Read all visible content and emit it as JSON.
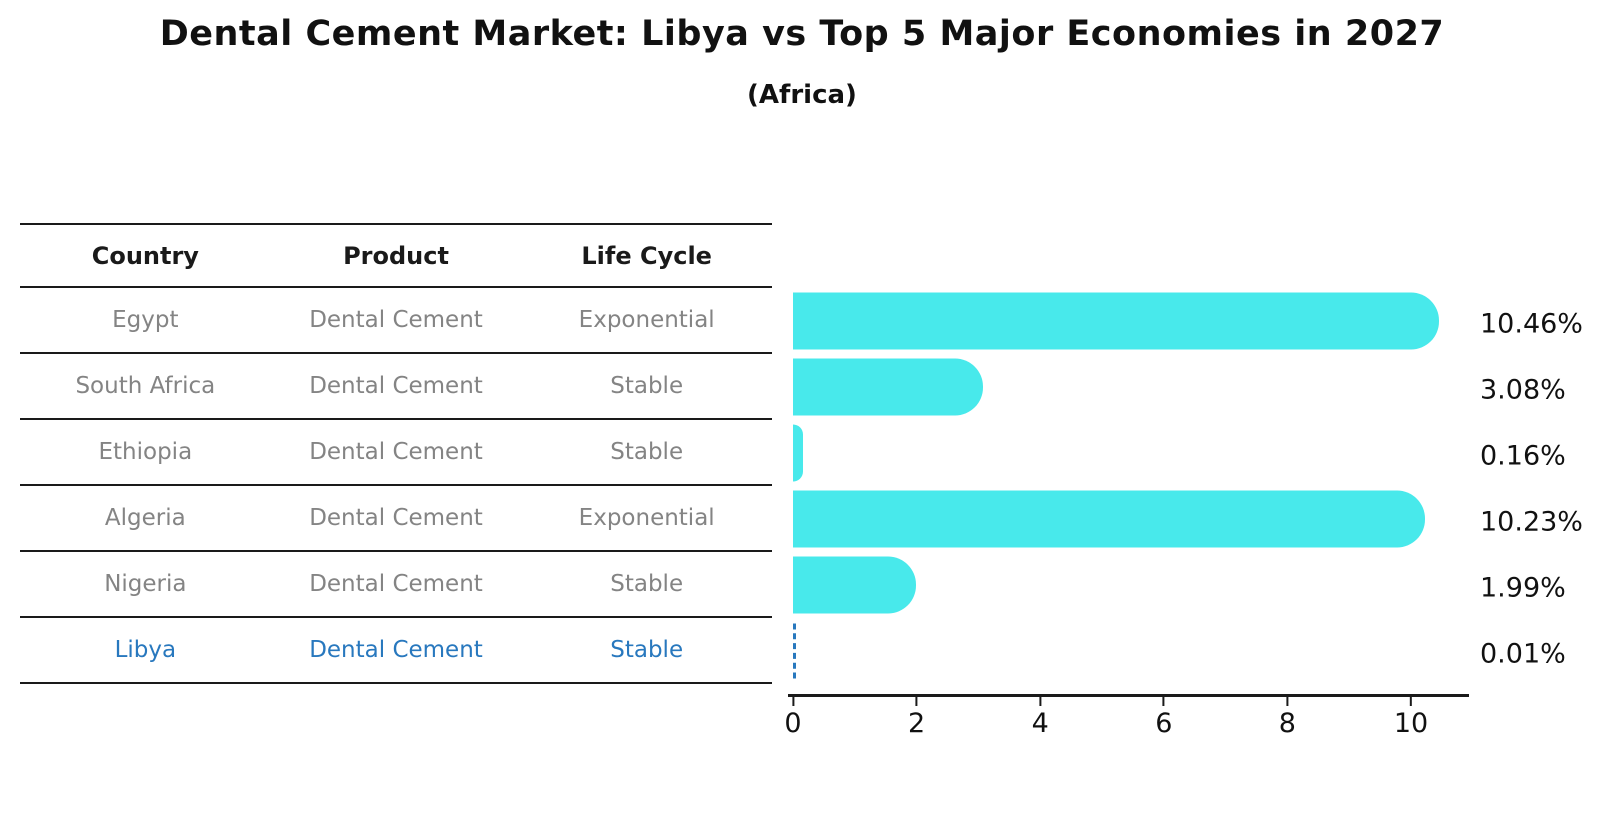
{
  "title": "Dental Cement Market: Libya vs Top 5 Major Economies in 2027",
  "subtitle": "(Africa)",
  "table": {
    "headers": [
      "Country",
      "Product",
      "Life Cycle"
    ],
    "rows": [
      {
        "country": "Egypt",
        "product": "Dental Cement",
        "life_cycle": "Exponential",
        "highlight": false
      },
      {
        "country": "South Africa",
        "product": "Dental Cement",
        "life_cycle": "Stable",
        "highlight": false
      },
      {
        "country": "Ethiopia",
        "product": "Dental Cement",
        "life_cycle": "Stable",
        "highlight": false
      },
      {
        "country": "Algeria",
        "product": "Dental Cement",
        "life_cycle": "Exponential",
        "highlight": false
      },
      {
        "country": "Nigeria",
        "product": "Dental Cement",
        "life_cycle": "Stable",
        "highlight": false
      },
      {
        "country": "Libya",
        "product": "Dental Cement",
        "life_cycle": "Stable",
        "highlight": true
      }
    ]
  },
  "chart_data": {
    "type": "bar",
    "orientation": "horizontal",
    "categories": [
      "Egypt",
      "South Africa",
      "Ethiopia",
      "Algeria",
      "Nigeria",
      "Libya"
    ],
    "values": [
      10.46,
      3.08,
      0.16,
      10.23,
      1.99,
      0.01
    ],
    "labels": [
      "10.46%",
      "3.08%",
      "0.16%",
      "10.23%",
      "1.99%",
      "0.01%"
    ],
    "x_ticks": [
      0,
      2,
      4,
      6,
      8,
      10
    ],
    "xlim": [
      0,
      10.94
    ],
    "grid": false,
    "legend": "none",
    "bar_styles": [
      "solid",
      "solid",
      "solid",
      "solid",
      "solid",
      "dashed-outline"
    ],
    "bar_color": "#48e9eb",
    "highlight_color": "#2878be",
    "highlight_index": 5
  }
}
